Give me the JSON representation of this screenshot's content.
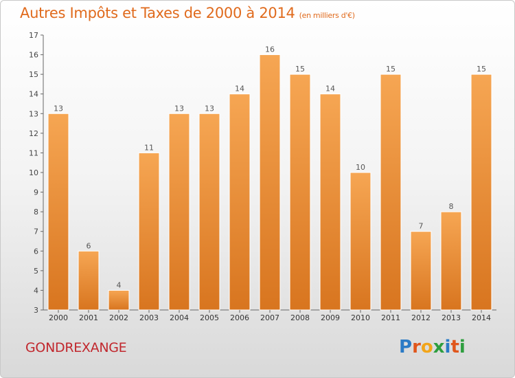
{
  "header": {
    "title": "Autres Impôts et Taxes de 2000 à 2014",
    "subtitle": "(en milliers d'€)"
  },
  "footer": {
    "town": "GONDREXANGE",
    "brand_letters": [
      "P",
      "r",
      "o",
      "x",
      "i",
      "t",
      "i"
    ]
  },
  "colors": {
    "bar_top": "#f6a653",
    "bar_bottom": "#d8751f",
    "title": "#e06a1c",
    "town": "#c1272d",
    "brand": [
      "#2b7bc6",
      "#e0561c",
      "#f2a51a",
      "#2e9e3f",
      "#2b7bc6",
      "#e0561c",
      "#2e9e3f"
    ]
  },
  "chart_data": {
    "type": "bar",
    "title": "Autres Impôts et Taxes de 2000 à 2014",
    "subtitle": "(en milliers d'€)",
    "categories": [
      "2000",
      "2001",
      "2002",
      "2003",
      "2004",
      "2005",
      "2006",
      "2007",
      "2008",
      "2009",
      "2010",
      "2011",
      "2012",
      "2013",
      "2014"
    ],
    "values": [
      13,
      6,
      4,
      11,
      13,
      13,
      14,
      16,
      15,
      14,
      10,
      15,
      7,
      8,
      15
    ],
    "ylim": [
      3,
      17
    ],
    "yticks": [
      3,
      4,
      5,
      6,
      7,
      8,
      9,
      10,
      11,
      12,
      13,
      14,
      15,
      16,
      17
    ],
    "grid": false,
    "legend": "none"
  }
}
